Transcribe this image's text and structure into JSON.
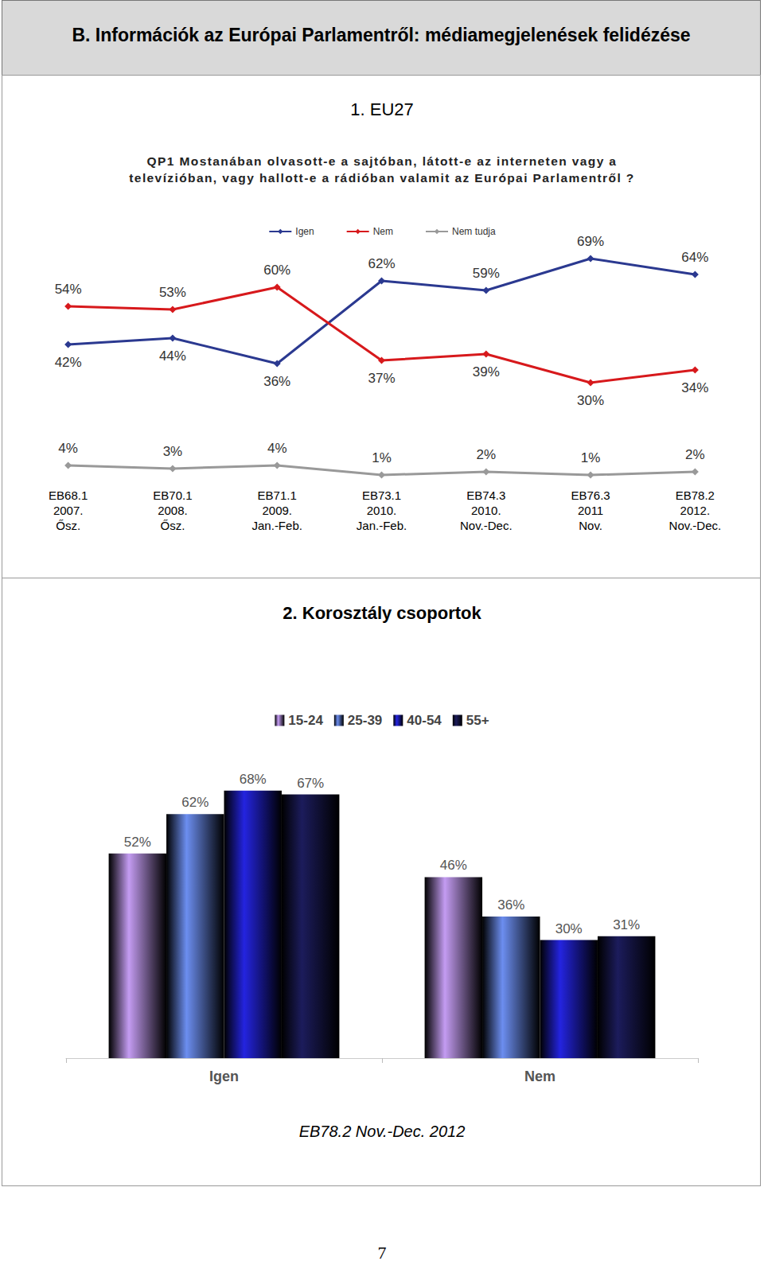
{
  "header": "B. Információk az Európai Parlamentről: médiamegjelenések felidézése",
  "page_number": "7",
  "chart_data": [
    {
      "type": "line",
      "title": "1. EU27",
      "subtitle": "QP1 Mostanában olvasott-e a sajtóban, látott-e az interneten vagy a televízióban, vagy hallott-e a rádióban valamit az Európai Parlamentről ?",
      "categories": [
        "EB68.1\n2007.\nŐsz.",
        "EB70.1\n2008.\nŐsz.",
        "EB71.1\n2009.\nJan.-Feb.",
        "EB73.1\n2010.\nJan.-Feb.",
        "EB74.3\n2010.\nNov.-Dec.",
        "EB76.3\n2011\nNov.",
        "EB78.2\n2012.\nNov.-Dec."
      ],
      "series": [
        {
          "name": "Igen",
          "color": "#2b3990",
          "values": [
            42,
            44,
            36,
            62,
            59,
            69,
            64
          ],
          "value_labels": [
            "42%",
            "44%",
            "36%",
            "62%",
            "59%",
            "69%",
            "64%"
          ]
        },
        {
          "name": "Nem",
          "color": "#d7191c",
          "values": [
            54,
            53,
            60,
            37,
            39,
            30,
            34
          ],
          "value_labels": [
            "54%",
            "53%",
            "60%",
            "37%",
            "39%",
            "30%",
            "34%"
          ]
        },
        {
          "name": "Nem tudja",
          "color": "#999999",
          "values": [
            4,
            3,
            4,
            1,
            2,
            1,
            2
          ],
          "value_labels": [
            "4%",
            "3%",
            "4%",
            "1%",
            "2%",
            "1%",
            "2%"
          ]
        }
      ],
      "ylim": [
        0,
        75
      ],
      "marker": "diamond",
      "legend": "top",
      "data_labels": true,
      "tick_labels": "x",
      "grid": false
    },
    {
      "type": "bar",
      "title": "2. Korosztály csoportok",
      "annotation": "EB78.2 Nov.-Dec. 2012",
      "categories": [
        "Igen",
        "Nem"
      ],
      "series": [
        {
          "name": "15-24",
          "color": "#c49cf2",
          "values": [
            52,
            46
          ],
          "value_labels": [
            "52%",
            "46%"
          ]
        },
        {
          "name": "25-39",
          "color": "#6c8ef0",
          "values": [
            62,
            36
          ],
          "value_labels": [
            "62%",
            "36%"
          ]
        },
        {
          "name": "40-54",
          "color": "#2424e0",
          "values": [
            68,
            30
          ],
          "value_labels": [
            "68%",
            "30%"
          ]
        },
        {
          "name": "55+",
          "color": "#1c1c5c",
          "values": [
            67,
            31
          ],
          "value_labels": [
            "67%",
            "31%"
          ]
        }
      ],
      "ylim": [
        0,
        75
      ],
      "legend": "top",
      "data_labels": true,
      "tick_labels": "x",
      "grid": false
    }
  ]
}
